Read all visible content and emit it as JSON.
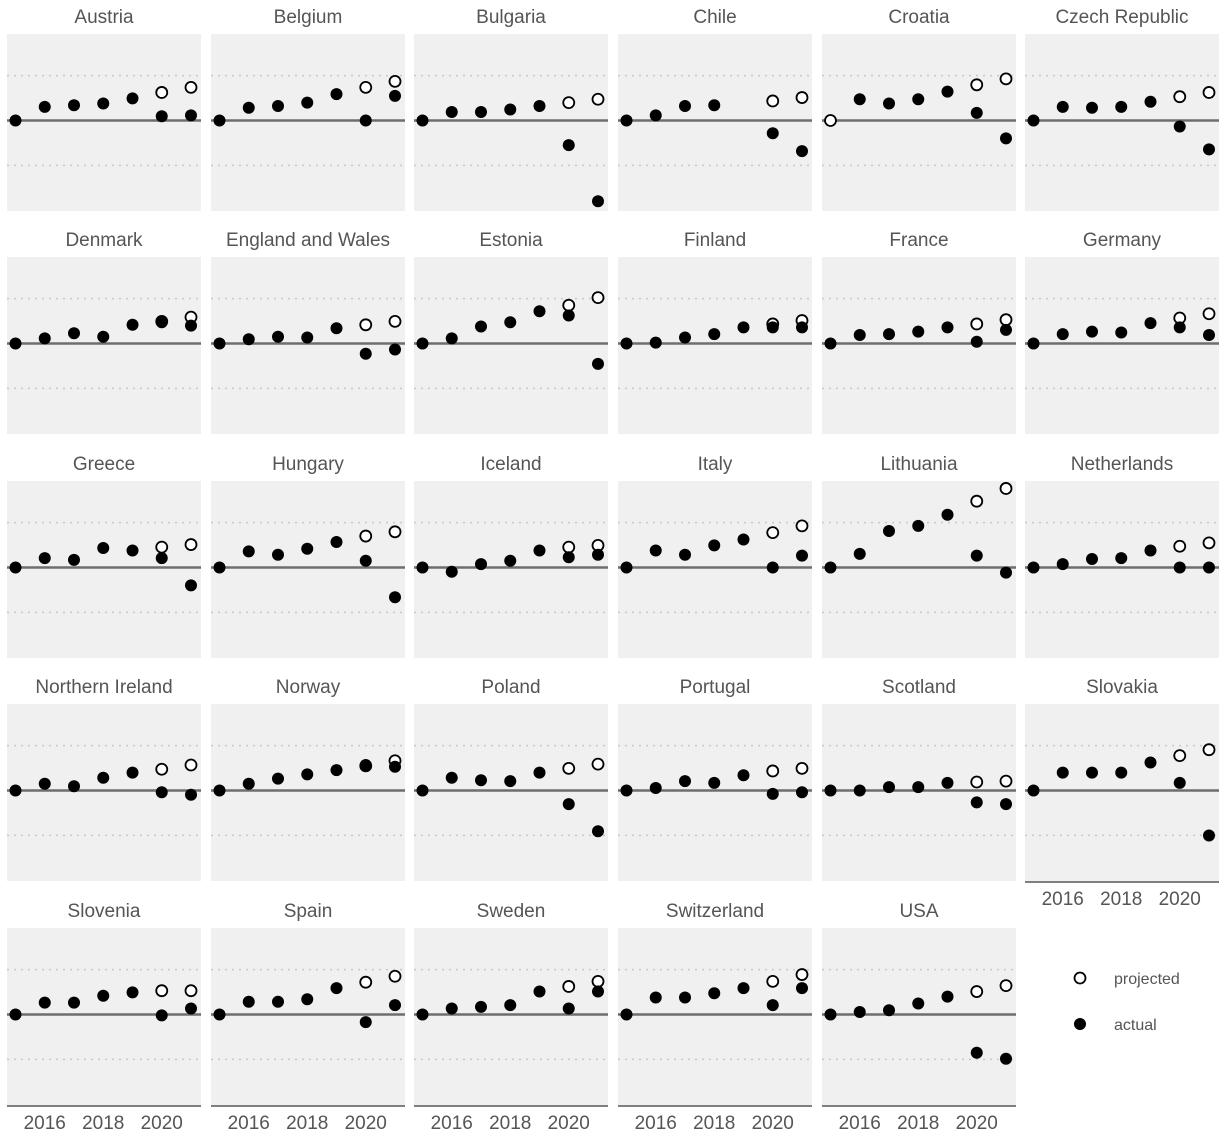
{
  "chart_data": {
    "type": "scatter",
    "layout": "small-multiples",
    "x": [
      2015,
      2016,
      2017,
      2018,
      2019,
      2020,
      2021
    ],
    "x_tick_labels": [
      "2016",
      "2018",
      "2020"
    ],
    "x_ticks": [
      2016,
      2018,
      2020
    ],
    "ylim": [
      -1,
      1
    ],
    "reference_line": 0,
    "grid": "dotted horizontal",
    "legend": {
      "position": "bottom-right",
      "entries": [
        {
          "name": "projected",
          "marker": "open circle"
        },
        {
          "name": "actual",
          "marker": "filled circle"
        }
      ]
    },
    "panels": [
      {
        "title": "Austria",
        "actual": [
          0,
          0.16,
          0.18,
          0.2,
          0.26,
          0.05,
          0.06
        ],
        "projected": [
          null,
          null,
          null,
          null,
          null,
          0.33,
          0.39
        ]
      },
      {
        "title": "Belgium",
        "actual": [
          0,
          0.15,
          0.17,
          0.21,
          0.31,
          0,
          0.29
        ],
        "projected": [
          null,
          null,
          null,
          null,
          null,
          0.39,
          0.46
        ]
      },
      {
        "title": "Bulgaria",
        "actual": [
          0,
          0.1,
          0.1,
          0.13,
          0.17,
          -0.29,
          -0.95
        ],
        "projected": [
          null,
          null,
          null,
          null,
          null,
          0.21,
          0.25
        ]
      },
      {
        "title": "Chile",
        "actual": [
          0,
          0.06,
          0.17,
          0.18,
          null,
          -0.15,
          -0.36
        ],
        "projected": [
          null,
          null,
          null,
          null,
          null,
          0.23,
          0.27
        ]
      },
      {
        "title": "Croatia",
        "actual": [
          null,
          0.25,
          0.2,
          0.25,
          0.34,
          0.09,
          -0.21
        ],
        "projected": [
          0,
          null,
          null,
          null,
          null,
          0.42,
          0.49
        ]
      },
      {
        "title": "Czech Republic",
        "actual": [
          0,
          0.16,
          0.15,
          0.16,
          0.22,
          -0.07,
          -0.34
        ],
        "projected": [
          null,
          null,
          null,
          null,
          null,
          0.28,
          0.33
        ]
      },
      {
        "title": "Denmark",
        "actual": [
          0,
          0.06,
          0.12,
          0.08,
          0.22,
          0.25,
          0.21
        ],
        "projected": [
          null,
          null,
          null,
          null,
          null,
          0.26,
          0.31
        ]
      },
      {
        "title": "England and Wales",
        "actual": [
          0,
          0.05,
          0.08,
          0.07,
          0.18,
          -0.12,
          -0.07
        ],
        "projected": [
          null,
          null,
          null,
          null,
          null,
          0.22,
          0.26
        ]
      },
      {
        "title": "Estonia",
        "actual": [
          0,
          0.06,
          0.2,
          0.25,
          0.38,
          0.33,
          -0.24
        ],
        "projected": [
          null,
          null,
          null,
          null,
          null,
          0.45,
          0.54
        ]
      },
      {
        "title": "Finland",
        "actual": [
          0,
          0.01,
          0.07,
          0.11,
          0.19,
          0.19,
          0.19
        ],
        "projected": [
          null,
          null,
          null,
          null,
          null,
          0.23,
          0.27
        ]
      },
      {
        "title": "France",
        "actual": [
          0,
          0.1,
          0.11,
          0.14,
          0.19,
          0.02,
          0.16
        ],
        "projected": [
          null,
          null,
          null,
          null,
          null,
          0.23,
          0.28
        ]
      },
      {
        "title": "Germany",
        "actual": [
          0,
          0.11,
          0.14,
          0.13,
          0.24,
          0.19,
          0.1
        ],
        "projected": [
          null,
          null,
          null,
          null,
          null,
          0.3,
          0.35
        ]
      },
      {
        "title": "Greece",
        "actual": [
          0,
          0.11,
          0.09,
          0.23,
          0.2,
          0.11,
          -0.21
        ],
        "projected": [
          null,
          null,
          null,
          null,
          null,
          0.24,
          0.27
        ]
      },
      {
        "title": "Hungary",
        "actual": [
          0,
          0.19,
          0.15,
          0.22,
          0.3,
          0.08,
          -0.35
        ],
        "projected": [
          null,
          null,
          null,
          null,
          null,
          0.37,
          0.42
        ]
      },
      {
        "title": "Iceland",
        "actual": [
          0,
          -0.05,
          0.04,
          0.08,
          0.2,
          0.12,
          0.15
        ],
        "projected": [
          null,
          null,
          null,
          null,
          null,
          0.24,
          0.26
        ]
      },
      {
        "title": "Italy",
        "actual": [
          0,
          0.2,
          0.15,
          0.26,
          0.33,
          0,
          0.14
        ],
        "projected": [
          null,
          null,
          null,
          null,
          null,
          0.41,
          0.49
        ]
      },
      {
        "title": "Lithuania",
        "actual": [
          0,
          0.16,
          0.43,
          0.49,
          0.62,
          0.14,
          -0.06
        ],
        "projected": [
          null,
          null,
          null,
          null,
          null,
          0.78,
          0.93
        ]
      },
      {
        "title": "Netherlands",
        "actual": [
          0,
          0.04,
          0.1,
          0.11,
          0.2,
          0,
          0
        ],
        "projected": [
          null,
          null,
          null,
          null,
          null,
          0.25,
          0.29
        ]
      },
      {
        "title": "Northern Ireland",
        "actual": [
          0,
          0.08,
          0.05,
          0.15,
          0.21,
          -0.02,
          -0.05
        ],
        "projected": [
          null,
          null,
          null,
          null,
          null,
          0.25,
          0.3
        ]
      },
      {
        "title": "Norway",
        "actual": [
          0,
          0.08,
          0.14,
          0.19,
          0.24,
          0.3,
          0.28
        ],
        "projected": [
          null,
          null,
          null,
          null,
          null,
          0.29,
          0.35
        ]
      },
      {
        "title": "Poland",
        "actual": [
          0,
          0.15,
          0.12,
          0.11,
          0.21,
          -0.16,
          -0.48
        ],
        "projected": [
          null,
          null,
          null,
          null,
          null,
          0.26,
          0.31
        ]
      },
      {
        "title": "Portugal",
        "actual": [
          0,
          0.03,
          0.11,
          0.09,
          0.18,
          -0.04,
          -0.02
        ],
        "projected": [
          null,
          null,
          null,
          null,
          null,
          0.23,
          0.26
        ]
      },
      {
        "title": "Scotland",
        "actual": [
          0,
          0,
          0.04,
          0.04,
          0.09,
          -0.14,
          -0.16
        ],
        "projected": [
          null,
          null,
          null,
          null,
          null,
          0.1,
          0.11
        ]
      },
      {
        "title": "Slovakia",
        "actual": [
          0,
          0.21,
          0.21,
          0.21,
          0.33,
          0.09,
          -0.53
        ],
        "projected": [
          null,
          null,
          null,
          null,
          null,
          0.41,
          0.48
        ]
      },
      {
        "title": "Slovenia",
        "actual": [
          0,
          0.14,
          0.14,
          0.22,
          0.26,
          -0.01,
          0.07
        ],
        "projected": [
          null,
          null,
          null,
          null,
          null,
          0.28,
          0.28
        ]
      },
      {
        "title": "Spain",
        "actual": [
          0,
          0.15,
          0.15,
          0.18,
          0.31,
          -0.09,
          0.11
        ],
        "projected": [
          null,
          null,
          null,
          null,
          null,
          0.38,
          0.45
        ]
      },
      {
        "title": "Sweden",
        "actual": [
          0,
          0.07,
          0.09,
          0.11,
          0.27,
          0.07,
          0.27
        ],
        "projected": [
          null,
          null,
          null,
          null,
          null,
          0.33,
          0.39
        ]
      },
      {
        "title": "Switzerland",
        "actual": [
          0,
          0.2,
          0.2,
          0.25,
          0.31,
          0.11,
          0.31
        ],
        "projected": [
          null,
          null,
          null,
          null,
          null,
          0.39,
          0.47
        ]
      },
      {
        "title": "USA",
        "actual": [
          0,
          0.03,
          0.05,
          0.13,
          0.21,
          -0.45,
          -0.52
        ],
        "projected": [
          null,
          null,
          null,
          null,
          null,
          0.27,
          0.34
        ]
      }
    ]
  }
}
